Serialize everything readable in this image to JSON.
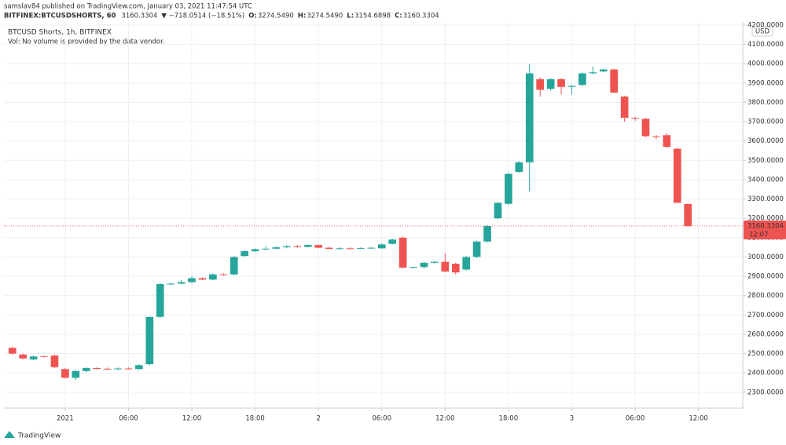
{
  "header": {
    "publisher": "samslav84 published on TradingView.com, January 03, 2021 11:47:54 UTC",
    "symbol": "BITFINEX:BTCUSDSHORTS, 60",
    "last": "3160.3304",
    "change": "▼ −718.0514 (−18.51%)",
    "ohlc": [
      {
        "key": "O:",
        "value": "3274.5490"
      },
      {
        "key": "H:",
        "value": "3274.5490"
      },
      {
        "key": "L:",
        "value": "3154.6898"
      },
      {
        "key": "C:",
        "value": "3160.3304"
      }
    ]
  },
  "chart_data": {
    "type": "candlestick",
    "legend": "BTCUSD Shorts, 1h, BITFINEX",
    "volume_note": "Vol: No volume is provided by the data vendor.",
    "currency": "USD",
    "up_color": "#26a69a",
    "down_color": "#ef5350",
    "grid": true,
    "x": [
      0,
      1,
      2,
      3,
      4,
      5,
      6,
      7,
      8,
      9,
      10,
      11,
      12,
      13,
      14,
      15,
      16,
      17,
      18,
      19,
      20,
      21,
      22,
      23,
      24,
      25,
      26,
      27,
      28,
      29,
      30,
      31,
      32,
      33,
      34,
      35,
      36,
      37,
      38,
      39,
      40,
      41,
      42,
      43,
      44,
      45,
      46,
      47,
      48,
      49,
      50,
      51,
      52,
      53,
      54,
      55,
      56,
      57,
      58,
      59,
      60,
      61,
      62,
      63,
      64
    ],
    "open": [
      2530,
      2495,
      2470,
      2487,
      2490,
      2420,
      2375,
      2410,
      2425,
      2422,
      2420,
      2423,
      2420,
      2445,
      2690,
      2860,
      2862,
      2870,
      2890,
      2883,
      2910,
      2910,
      3005,
      3030,
      3040,
      3043,
      3050,
      3055,
      3052,
      3062,
      3048,
      3042,
      3045,
      3044,
      3046,
      3045,
      3068,
      3100,
      2945,
      2948,
      2970,
      2975,
      2965,
      2935,
      3000,
      3080,
      3200,
      3275,
      3440,
      3490,
      3920,
      3870,
      3920,
      3880,
      3890,
      3950,
      3960,
      3970,
      3830,
      3720,
      3715,
      3625,
      3630,
      3560,
      3274.549
    ],
    "high": [
      2535,
      2500,
      2490,
      2490,
      2495,
      2425,
      2415,
      2430,
      2430,
      2428,
      2428,
      2428,
      2445,
      2690,
      2865,
      2868,
      2880,
      2900,
      2895,
      2915,
      2915,
      3005,
      3035,
      3045,
      3055,
      3055,
      3062,
      3062,
      3065,
      3065,
      3052,
      3050,
      3050,
      3050,
      3050,
      3070,
      3095,
      3105,
      2950,
      2975,
      2978,
      3020,
      2970,
      3005,
      3085,
      3165,
      3285,
      3435,
      3495,
      4000,
      3930,
      3925,
      3925,
      3890,
      3955,
      3985,
      3975,
      3975,
      3835,
      3725,
      3720,
      3630,
      3640,
      3565,
      3274.549
    ],
    "low": [
      2495,
      2470,
      2465,
      2480,
      2425,
      2370,
      2365,
      2405,
      2418,
      2418,
      2415,
      2418,
      2415,
      2440,
      2685,
      2855,
      2858,
      2865,
      2880,
      2880,
      2905,
      2905,
      3000,
      3025,
      3035,
      3040,
      3045,
      3048,
      3050,
      3045,
      3040,
      3038,
      3040,
      3040,
      3042,
      3042,
      3065,
      2940,
      2940,
      2940,
      2965,
      2920,
      2910,
      2930,
      2995,
      3075,
      3195,
      3270,
      3435,
      3340,
      3830,
      3860,
      3840,
      3840,
      3885,
      3945,
      3955,
      3850,
      3700,
      3705,
      3620,
      3610,
      3565,
      3280,
      3154.6898
    ],
    "close": [
      2500,
      2475,
      2485,
      2485,
      2430,
      2375,
      2410,
      2425,
      2422,
      2420,
      2423,
      2420,
      2440,
      2690,
      2860,
      2862,
      2870,
      2890,
      2883,
      2910,
      2907,
      3000,
      3030,
      3040,
      3043,
      3050,
      3055,
      3052,
      3062,
      3048,
      3042,
      3045,
      3044,
      3046,
      3048,
      3065,
      3090,
      2945,
      2948,
      2970,
      2975,
      2925,
      2920,
      3000,
      3080,
      3160,
      3280,
      3430,
      3490,
      3950,
      3865,
      3920,
      3880,
      3885,
      3950,
      3955,
      3970,
      3850,
      3720,
      3718,
      3625,
      3622,
      3570,
      3280,
      3160.3304
    ],
    "xlim": [
      -0.8,
      69.2
    ],
    "xticks": [
      {
        "value": 5,
        "label": "2021"
      },
      {
        "value": 11,
        "label": "06:00"
      },
      {
        "value": 17,
        "label": "12:00"
      },
      {
        "value": 23,
        "label": "18:00"
      },
      {
        "value": 29,
        "label": "2"
      },
      {
        "value": 35,
        "label": "06:00"
      },
      {
        "value": 41,
        "label": "12:00"
      },
      {
        "value": 47,
        "label": "18:00"
      },
      {
        "value": 53,
        "label": "3"
      },
      {
        "value": 59,
        "label": "06:00"
      },
      {
        "value": 65,
        "label": "12:00"
      }
    ],
    "ylim": [
      2218,
      4216
    ],
    "yticks": [
      {
        "value": 2300,
        "label": "2300.0000"
      },
      {
        "value": 2400,
        "label": "2400.0000"
      },
      {
        "value": 2500,
        "label": "2500.0000"
      },
      {
        "value": 2600,
        "label": "2600.0000"
      },
      {
        "value": 2700,
        "label": "2700.0000"
      },
      {
        "value": 2800,
        "label": "2800.0000"
      },
      {
        "value": 2900,
        "label": "2900.0000"
      },
      {
        "value": 3000,
        "label": "3000.0000"
      },
      {
        "value": 3100,
        "label": "3100.0000"
      },
      {
        "value": 3200,
        "label": "3200.0000"
      },
      {
        "value": 3300,
        "label": "3300.0000"
      },
      {
        "value": 3400,
        "label": "3400.0000"
      },
      {
        "value": 3500,
        "label": "3500.0000"
      },
      {
        "value": 3600,
        "label": "3600.0000"
      },
      {
        "value": 3700,
        "label": "3700.0000"
      },
      {
        "value": 3800,
        "label": "3800.0000"
      },
      {
        "value": 3900,
        "label": "3900.0000"
      },
      {
        "value": 4000,
        "label": "4000.0000"
      },
      {
        "value": 4100,
        "label": "4100.0000"
      },
      {
        "value": 4200,
        "label": "4200.0000"
      }
    ],
    "last_price": 3160.3304,
    "countdown": "12:07"
  },
  "footer": {
    "brand": "TradingView"
  }
}
